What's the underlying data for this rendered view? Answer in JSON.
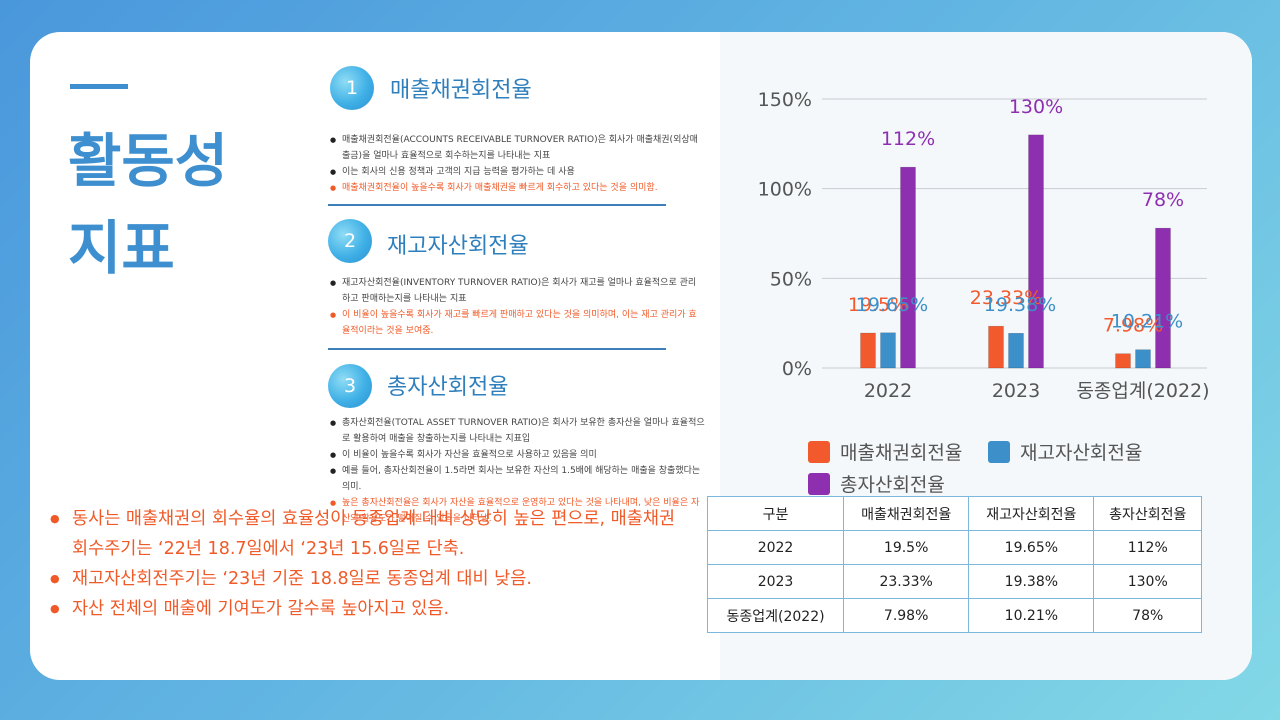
{
  "title": "활동성\n지표",
  "sections": [
    {
      "number": "1",
      "title": "매출채권회전율",
      "bullets": [
        {
          "text": "매출채권회전율(ACCOUNTS RECEIVABLE TURNOVER RATIO)은 회사가 매출채권(외상매출금)을 얼마나 효율적으로 회수하는지를 나타내는 지표",
          "highlight": false
        },
        {
          "text": "이는 회사의 신용 정책과 고객의 지급 능력을 평가하는 데 사용",
          "highlight": false
        },
        {
          "text": "매출채권회전율이 높을수록 회사가 매출채권을 빠르게 회수하고 있다는 것을 의미함.",
          "highlight": true
        }
      ]
    },
    {
      "number": "2",
      "title": "재고자산회전율",
      "bullets": [
        {
          "text": "재고자산회전율(INVENTORY TURNOVER RATIO)은 회사가 재고를 얼마나 효율적으로 관리하고 판매하는지를 나타내는 지표",
          "highlight": false
        },
        {
          "text": "이 비율이 높을수록 회사가 재고를 빠르게 판매하고 있다는 것을 의미하며, 이는 재고 관리가 효율적이라는 것을 보여줌.",
          "highlight": true
        }
      ]
    },
    {
      "number": "3",
      "title": "총자산회전율",
      "bullets": [
        {
          "text": "총자산회전율(TOTAL ASSET TURNOVER RATIO)은 회사가 보유한 총자산을 얼마나 효율적으로 활용하여 매출을 창출하는지를 나타내는 지표입",
          "highlight": false
        },
        {
          "text": "이 비율이 높을수록 회사가 자산을 효율적으로 사용하고 있음을 의미",
          "highlight": false
        },
        {
          "text": "예를 들어, 총자산회전율이 1.5라면 회사는 보유한 자산의 1.5배에 해당하는 매출을 창출했다는 의미.",
          "highlight": false
        },
        {
          "text": "높은 총자산회전율은 회사가 자산을 효율적으로 운영하고 있다는 것을 나타내며, 낮은 비율은 자산의 활용도가 떨어질 수 있음을 나타냄.",
          "highlight": true
        }
      ]
    }
  ],
  "summary": [
    "동사는 매출채권의 회수율의 효율성이 동종업계 대비 상당히 높은 편으로, 매출채권회수주기는 ‘22년 18.7일에서 ‘23년 15.6일로 단축.",
    "재고자산회전주기는 ‘23년 기준 18.8일로 동종업계 대비 낮음.",
    "자산 전체의 매출에 기여도가 갈수록 높아지고 있음."
  ],
  "chart_data": {
    "type": "bar",
    "categories": [
      "2022",
      "2023",
      "동종업계(2022)"
    ],
    "series": [
      {
        "name": "매출채권회전율",
        "color": "#f25a2e",
        "values": [
          19.5,
          23.33,
          7.98
        ],
        "labels": [
          "19.5%",
          "23.33%",
          "7.98%"
        ]
      },
      {
        "name": "재고자산회전율",
        "color": "#3d8fca",
        "values": [
          19.65,
          19.38,
          10.21
        ],
        "labels": [
          "19.65%",
          "19.38%",
          "10.21%"
        ]
      },
      {
        "name": "총자산회전율",
        "color": "#8e2fb0",
        "values": [
          112,
          130,
          78
        ],
        "labels": [
          "112%",
          "130%",
          "78%"
        ]
      }
    ],
    "y_ticks": [
      "0%",
      "50%",
      "100%",
      "150%"
    ],
    "y_tick_values": [
      0,
      50,
      100,
      150
    ],
    "ylim": [
      0,
      150
    ],
    "grid": true,
    "legend": "bottom"
  },
  "table": {
    "headers": [
      "구분",
      "매출채권회전율",
      "재고자산회전율",
      "총자산회전율"
    ],
    "rows": [
      [
        "2022",
        "19.5%",
        "19.65%",
        "112%"
      ],
      [
        "2023",
        "23.33%",
        "19.38%",
        "130%"
      ],
      [
        "동종업계(2022)",
        "7.98%",
        "10.21%",
        "78%"
      ]
    ]
  }
}
